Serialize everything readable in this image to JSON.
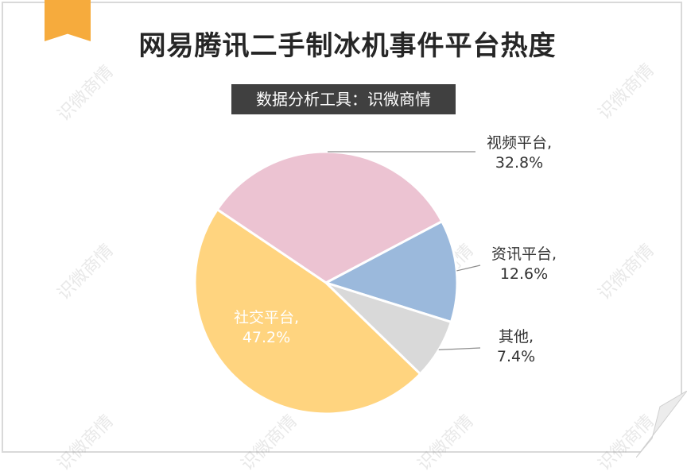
{
  "title": "网易腾讯二手制冰机事件平台热度",
  "subtitle": "数据分析工具：识微商情",
  "watermark": "识微商情",
  "chart_data": {
    "type": "pie",
    "title": "网易腾讯二手制冰机事件平台热度",
    "slices": [
      {
        "name": "视频平台",
        "value": 32.8,
        "label": "32.8%",
        "color": "#ecc3d2"
      },
      {
        "name": "资讯平台",
        "value": 12.6,
        "label": "12.6%",
        "color": "#9bb9dc"
      },
      {
        "name": "其他",
        "value": 7.4,
        "label": "7.4%",
        "color": "#d9d9d9"
      },
      {
        "name": "社交平台",
        "value": 47.2,
        "label": "47.2%",
        "color": "#ffd47f"
      }
    ],
    "legend": "none",
    "data_labels": "category-name and percentage"
  }
}
